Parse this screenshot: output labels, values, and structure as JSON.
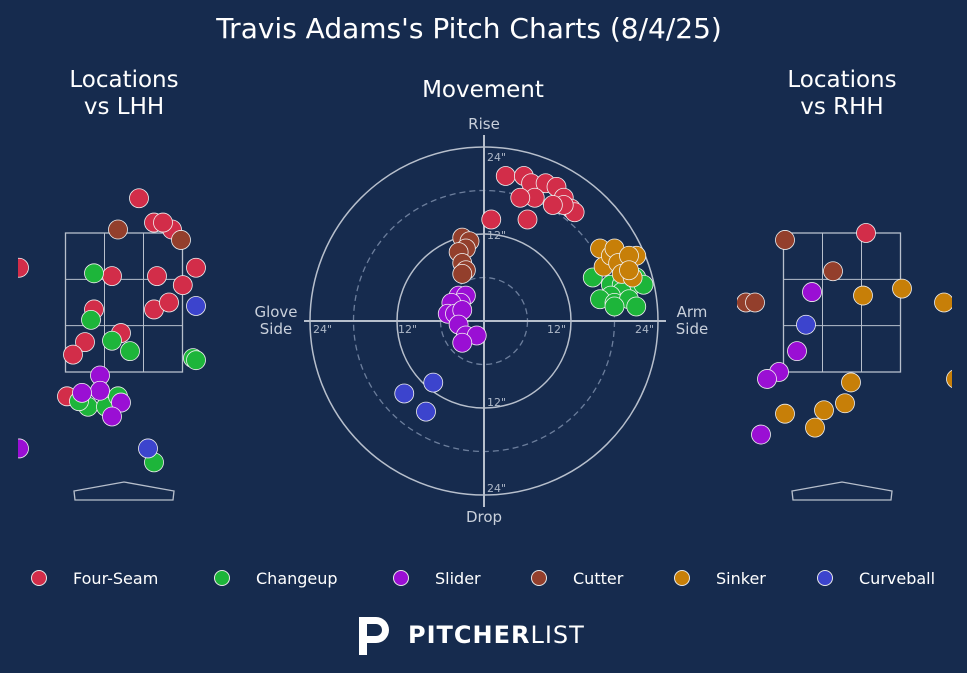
{
  "title": "Travis Adams's Pitch Charts (8/4/25)",
  "brand": {
    "bold": "PITCHER",
    "light": "LIST"
  },
  "colors": {
    "background": "#162b4e",
    "Four-Seam": "#d22d49",
    "Changeup": "#1db53a",
    "Slider": "#9a0fd4",
    "Cutter": "#933f2c",
    "Sinker": "#c77f08",
    "Curveball": "#3c44cd"
  },
  "legend": [
    "Four-Seam",
    "Changeup",
    "Slider",
    "Cutter",
    "Sinker",
    "Curveball"
  ],
  "chart_data": [
    {
      "type": "scatter",
      "title": "Locations\nvs LHH",
      "xlabel": "",
      "ylabel": "",
      "series": [
        {
          "name": "Four-Seam",
          "points": [
            [
              0.25,
              4.0
            ],
            [
              0.5,
              3.65
            ],
            [
              0.8,
              3.55
            ],
            [
              -1.75,
              3.0
            ],
            [
              -0.2,
              2.88
            ],
            [
              0.55,
              2.88
            ],
            [
              1.2,
              3.0
            ],
            [
              0.98,
              2.75
            ],
            [
              -0.5,
              2.4
            ],
            [
              0.5,
              2.4
            ],
            [
              0.75,
              2.5
            ],
            [
              -0.05,
              2.06
            ],
            [
              -0.65,
              1.93
            ],
            [
              -0.85,
              1.75
            ],
            [
              -0.95,
              1.15
            ],
            [
              0.65,
              3.65
            ]
          ]
        },
        {
          "name": "Changeup",
          "points": [
            [
              -0.5,
              2.92
            ],
            [
              -0.55,
              2.25
            ],
            [
              0.1,
              1.8
            ],
            [
              -0.2,
              1.95
            ],
            [
              1.15,
              1.7
            ],
            [
              1.2,
              1.67
            ],
            [
              -0.6,
              1.0
            ],
            [
              -0.3,
              1.0
            ],
            [
              -0.1,
              1.15
            ],
            [
              -0.75,
              1.08
            ],
            [
              0.5,
              0.2
            ]
          ]
        },
        {
          "name": "Slider",
          "points": [
            [
              -2.25,
              1.65
            ],
            [
              -0.4,
              1.45
            ],
            [
              -0.4,
              1.23
            ],
            [
              -0.7,
              1.2
            ],
            [
              -0.05,
              1.06
            ],
            [
              -0.2,
              0.86
            ],
            [
              -1.75,
              0.4
            ]
          ]
        },
        {
          "name": "Cutter",
          "points": [
            [
              -0.1,
              3.55
            ],
            [
              0.95,
              3.4
            ]
          ]
        },
        {
          "name": "Curveball",
          "points": [
            [
              1.2,
              2.45
            ],
            [
              0.4,
              0.4
            ]
          ]
        }
      ]
    },
    {
      "type": "scatter",
      "title": "Movement",
      "xlabel": "Glove\nSide | Arm\nSide",
      "ylabel": "Rise | Drop",
      "rings": [
        "12\"",
        "24\""
      ],
      "series": [
        {
          "name": "Four-Seam",
          "points": [
            [
              3,
              20
            ],
            [
              5.5,
              20
            ],
            [
              6.5,
              19
            ],
            [
              8.5,
              19
            ],
            [
              10,
              18.5
            ],
            [
              11,
              17
            ],
            [
              12,
              15.5
            ],
            [
              12.5,
              15
            ],
            [
              11,
              16
            ],
            [
              9.5,
              16
            ],
            [
              7,
              17
            ],
            [
              5,
              17
            ],
            [
              1,
              14
            ],
            [
              6,
              14
            ]
          ]
        },
        {
          "name": "Changeup",
          "points": [
            [
              15,
              6
            ],
            [
              17.5,
              5
            ],
            [
              19,
              5
            ],
            [
              20,
              4.5
            ],
            [
              21,
              6
            ],
            [
              22,
              5
            ],
            [
              19,
              4
            ],
            [
              17.5,
              3.5
            ],
            [
              16,
              3
            ],
            [
              18,
              2.5
            ],
            [
              20,
              3
            ],
            [
              21,
              2
            ],
            [
              18,
              2
            ]
          ]
        },
        {
          "name": "Sinker",
          "points": [
            [
              16,
              10
            ],
            [
              16.5,
              7.5
            ],
            [
              17.5,
              9
            ],
            [
              18,
              10
            ],
            [
              18.5,
              8
            ],
            [
              19,
              6.5
            ],
            [
              20.5,
              6
            ],
            [
              21,
              9
            ],
            [
              20,
              9
            ],
            [
              20,
              7
            ]
          ]
        },
        {
          "name": "Slider",
          "points": [
            [
              -3.5,
              3.5
            ],
            [
              -2.5,
              3.5
            ],
            [
              -3.2,
              2.5
            ],
            [
              -4.5,
              2.5
            ],
            [
              -5,
              1
            ],
            [
              -4,
              1
            ],
            [
              -3,
              1.5
            ],
            [
              -3.5,
              -0.5
            ],
            [
              -2.5,
              -2
            ],
            [
              -1,
              -2
            ],
            [
              -3,
              -3
            ]
          ]
        },
        {
          "name": "Cutter",
          "points": [
            [
              -3,
              11.5
            ],
            [
              -2,
              11
            ],
            [
              -2.5,
              10
            ],
            [
              -3.5,
              9.5
            ],
            [
              -3,
              8
            ],
            [
              -2.5,
              7
            ],
            [
              -3,
              6.5
            ]
          ]
        },
        {
          "name": "Curveball",
          "points": [
            [
              -11,
              -10
            ],
            [
              -7,
              -8.5
            ],
            [
              -8,
              -12.5
            ]
          ]
        }
      ]
    },
    {
      "type": "scatter",
      "title": "Locations\nvs RHH",
      "xlabel": "",
      "ylabel": "",
      "series": [
        {
          "name": "Four-Seam",
          "points": [
            [
              0.4,
              3.5
            ]
          ]
        },
        {
          "name": "Cutter",
          "points": [
            [
              -0.95,
              3.4
            ],
            [
              -0.15,
              2.95
            ],
            [
              -1.6,
              2.5
            ],
            [
              -1.45,
              2.5
            ]
          ]
        },
        {
          "name": "Slider",
          "points": [
            [
              -2.55,
              2.5
            ],
            [
              -0.5,
              2.65
            ],
            [
              -0.75,
              1.8
            ],
            [
              -1.05,
              1.5
            ],
            [
              -1.25,
              1.4
            ],
            [
              -2.05,
              0.85
            ],
            [
              -1.35,
              0.6
            ]
          ]
        },
        {
          "name": "Curveball",
          "points": [
            [
              -0.6,
              2.18
            ]
          ]
        },
        {
          "name": "Sinker",
          "points": [
            [
              0.35,
              2.6
            ],
            [
              1.0,
              2.7
            ],
            [
              1.7,
              2.5
            ],
            [
              1.9,
              1.4
            ],
            [
              -0.95,
              0.9
            ],
            [
              -0.3,
              0.95
            ],
            [
              0.05,
              1.05
            ],
            [
              0.15,
              1.35
            ],
            [
              -0.45,
              0.7
            ]
          ]
        }
      ]
    }
  ]
}
